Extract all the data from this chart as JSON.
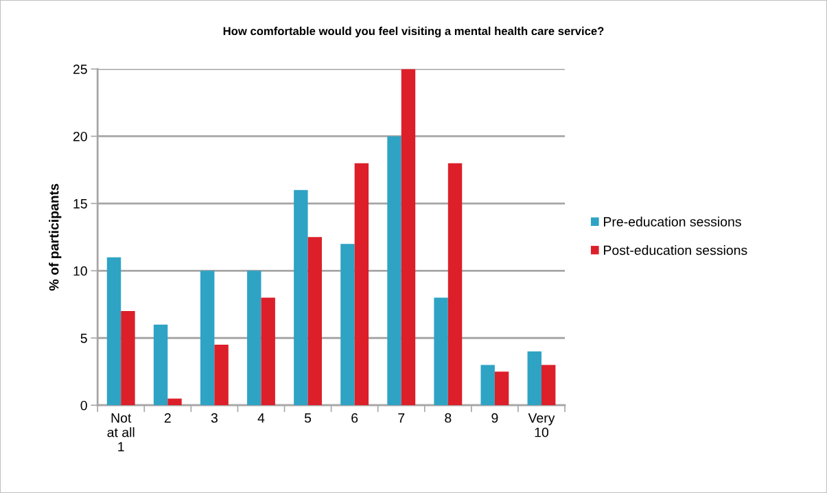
{
  "chart_data": {
    "type": "bar",
    "title": "How comfortable would you feel visiting a mental health care service?",
    "ylabel": "% of participants",
    "categories": [
      "Not\nat all\n1",
      "2",
      "3",
      "4",
      "5",
      "6",
      "7",
      "8",
      "9",
      "Very\n10"
    ],
    "series": [
      {
        "name": "Pre-education sessions",
        "color": "#2ea3c4",
        "values": [
          11,
          6,
          10,
          10,
          16,
          12,
          20,
          8,
          3,
          4
        ]
      },
      {
        "name": "Post-education sessions",
        "color": "#dc1f29",
        "values": [
          7,
          0.5,
          4.5,
          8,
          12.5,
          18,
          25,
          18,
          2.5,
          3
        ]
      }
    ],
    "ylim": [
      0,
      25
    ],
    "yticks": [
      0,
      5,
      10,
      15,
      20,
      25
    ],
    "grid": "y",
    "legend": "right"
  }
}
